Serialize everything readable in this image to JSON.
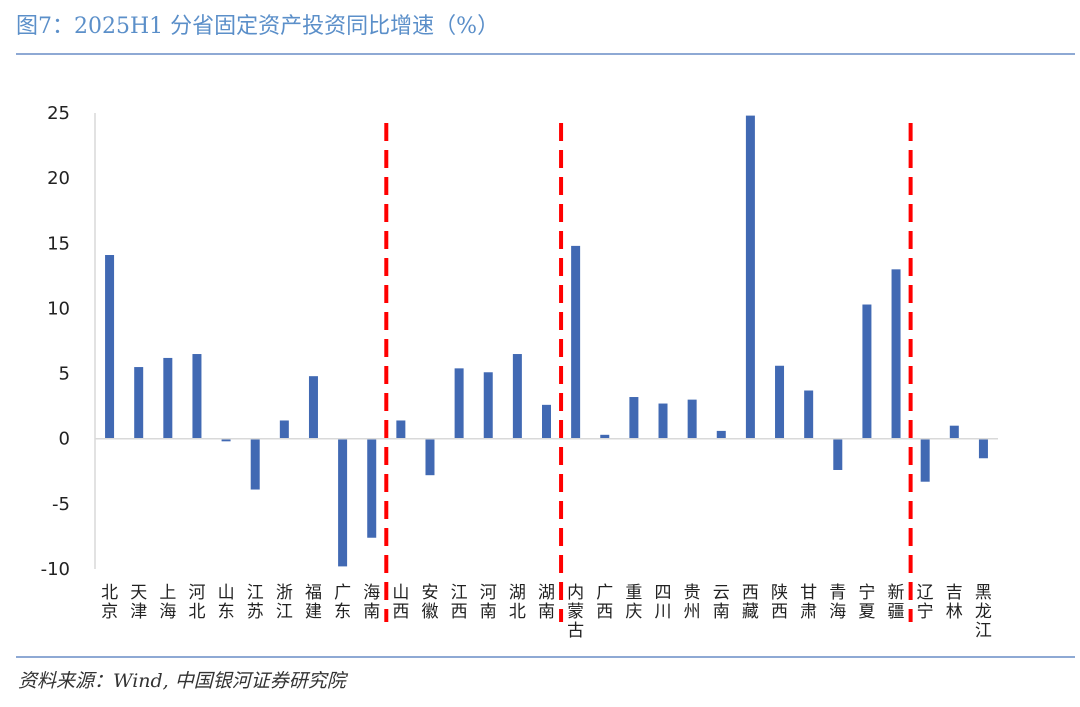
{
  "header": {
    "title": "图7：2025H1 分省固定资产投资同比增速（%）"
  },
  "footer": {
    "source": "资料来源：Wind, 中国银河证券研究院"
  },
  "colors": {
    "bar": "#4169b3",
    "divider": "#ff0000",
    "axis": "#d9d9d9",
    "title": "#5b8fc9",
    "rule": "#8ea9d4"
  },
  "chart_data": {
    "type": "bar",
    "title": "2025H1 分省固定资产投资同比增速（%）",
    "xlabel": "",
    "ylabel": "",
    "ylim": [
      -10,
      25
    ],
    "yticks": [
      25,
      20,
      15,
      10,
      5,
      0,
      -5,
      -10
    ],
    "grid": false,
    "legend": "none",
    "categories": [
      "北京",
      "天津",
      "上海",
      "河北",
      "山东",
      "江苏",
      "浙江",
      "福建",
      "广东",
      "海南",
      "山西",
      "安徽",
      "江西",
      "河南",
      "湖北",
      "湖南",
      "内蒙古",
      "广西",
      "重庆",
      "四川",
      "贵州",
      "云南",
      "西藏",
      "陕西",
      "甘肃",
      "青海",
      "宁夏",
      "新疆",
      "辽宁",
      "吉林",
      "黑龙江"
    ],
    "values": [
      14.1,
      5.5,
      6.2,
      6.5,
      -0.2,
      -3.9,
      1.4,
      4.8,
      -9.8,
      -7.6,
      1.4,
      -2.8,
      5.4,
      5.1,
      6.5,
      2.6,
      14.8,
      0.3,
      3.2,
      2.7,
      3.0,
      0.6,
      24.8,
      5.6,
      3.7,
      -2.4,
      10.3,
      13.0,
      -3.3,
      1.0,
      -1.5
    ],
    "divider_after_categories": [
      "海南",
      "湖南",
      "新疆"
    ]
  }
}
